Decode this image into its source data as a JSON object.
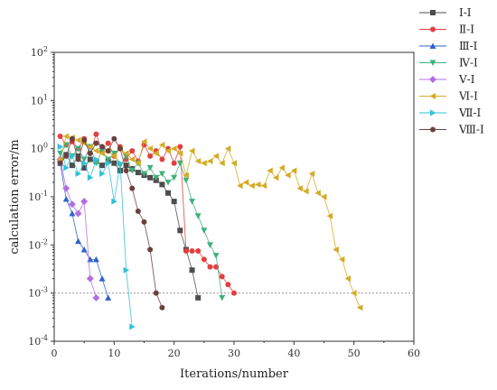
{
  "chart_data": {
    "type": "line",
    "xlabel": "Iterations/number",
    "ylabel": "calculation error/m",
    "xlim": [
      0,
      60
    ],
    "ylim": [
      0.0001,
      100
    ],
    "y_scale": "log",
    "x_ticks": [
      "0",
      "10",
      "20",
      "30",
      "40",
      "50",
      "60"
    ],
    "y_ticks": [
      {
        "value": 0.0001,
        "base": "10",
        "exp": "-4"
      },
      {
        "value": 0.001,
        "base": "10",
        "exp": "-3"
      },
      {
        "value": 0.01,
        "base": "10",
        "exp": "-2"
      },
      {
        "value": 0.1,
        "base": "10",
        "exp": "-1"
      },
      {
        "value": 1,
        "base": "10",
        "exp": "0"
      },
      {
        "value": 10,
        "base": "10",
        "exp": "1"
      },
      {
        "value": 100,
        "base": "10",
        "exp": "2"
      }
    ],
    "reference_line": {
      "y": 0.001,
      "style": "dashed"
    },
    "legend_position": "top-right, outside plot",
    "grid": false,
    "series": [
      {
        "name": "Ⅰ-Ⅰ",
        "color": "#4d4d4d",
        "marker": "square",
        "x": [
          1,
          2,
          3,
          4,
          5,
          6,
          7,
          8,
          9,
          10,
          11,
          12,
          13,
          14,
          15,
          16,
          17,
          18,
          19,
          20,
          21,
          22,
          23,
          24
        ],
        "y": [
          0.55,
          0.75,
          0.45,
          0.7,
          0.4,
          0.6,
          0.55,
          0.45,
          0.55,
          0.5,
          0.35,
          0.45,
          0.38,
          0.32,
          0.28,
          0.25,
          0.22,
          0.18,
          0.12,
          0.08,
          0.02,
          0.008,
          0.003,
          0.0008
        ]
      },
      {
        "name": "Ⅱ-Ⅰ",
        "color": "#e0403f",
        "marker": "circle",
        "x": [
          1,
          2,
          3,
          4,
          5,
          6,
          7,
          8,
          9,
          10,
          11,
          12,
          13,
          14,
          15,
          16,
          17,
          18,
          19,
          20,
          21,
          22,
          23,
          24,
          25,
          26,
          27,
          28,
          29,
          30
        ],
        "y": [
          1.8,
          1.2,
          1.4,
          1.0,
          1.6,
          0.8,
          2.0,
          0.9,
          1.3,
          0.7,
          1.1,
          0.6,
          0.9,
          0.55,
          1.2,
          0.7,
          0.9,
          0.6,
          1.0,
          0.5,
          1.1,
          0.0075,
          0.0075,
          0.0075,
          0.005,
          0.0035,
          0.0035,
          0.0022,
          0.0015,
          0.001
        ]
      },
      {
        "name": "Ⅲ-Ⅰ",
        "color": "#2f63c9",
        "marker": "triangle-up",
        "x": [
          1,
          2,
          3,
          4,
          5,
          6,
          7,
          8,
          9
        ],
        "y": [
          0.5,
          0.09,
          0.045,
          0.012,
          0.008,
          0.005,
          0.005,
          0.002,
          0.0008
        ]
      },
      {
        "name": "Ⅳ-Ⅰ",
        "color": "#3fb07c",
        "marker": "triangle-down",
        "x": [
          1,
          2,
          3,
          4,
          5,
          6,
          7,
          8,
          9,
          10,
          11,
          12,
          13,
          14,
          15,
          16,
          17,
          18,
          19,
          20,
          21,
          22,
          23,
          24,
          25,
          26,
          27,
          28
        ],
        "y": [
          0.8,
          1.2,
          0.7,
          1.0,
          0.6,
          1.1,
          0.5,
          0.9,
          0.6,
          0.8,
          0.45,
          0.7,
          0.35,
          0.5,
          0.3,
          0.4,
          0.25,
          0.3,
          0.2,
          0.25,
          0.5,
          0.22,
          0.08,
          0.04,
          0.02,
          0.01,
          0.006,
          0.0008
        ]
      },
      {
        "name": "Ⅴ-Ⅰ",
        "color": "#b36fe0",
        "marker": "diamond",
        "x": [
          1,
          2,
          3,
          4,
          5,
          6,
          7
        ],
        "y": [
          0.6,
          0.15,
          0.07,
          0.045,
          0.08,
          0.002,
          0.0008
        ]
      },
      {
        "name": "Ⅵ-Ⅰ",
        "color": "#d4ab25",
        "marker": "triangle-left",
        "x": [
          1,
          2,
          3,
          4,
          5,
          6,
          7,
          8,
          9,
          10,
          11,
          12,
          13,
          14,
          15,
          16,
          17,
          18,
          19,
          20,
          21,
          22,
          23,
          24,
          25,
          26,
          27,
          28,
          29,
          30,
          31,
          32,
          33,
          34,
          35,
          36,
          37,
          38,
          39,
          40,
          41,
          42,
          43,
          44,
          45,
          46,
          47,
          48,
          49,
          50,
          51
        ],
        "y": [
          0.6,
          1.8,
          1.7,
          1.5,
          1.3,
          1.1,
          0.9,
          0.8,
          0.9,
          0.7,
          1.0,
          0.8,
          0.6,
          0.5,
          1.4,
          1.0,
          0.8,
          1.2,
          0.9,
          1.0,
          0.8,
          0.28,
          0.9,
          0.55,
          0.5,
          0.55,
          0.7,
          0.5,
          1.0,
          0.5,
          0.17,
          0.2,
          0.17,
          0.18,
          0.17,
          0.35,
          0.25,
          0.4,
          0.28,
          0.35,
          0.15,
          0.13,
          0.3,
          0.12,
          0.1,
          0.04,
          0.008,
          0.005,
          0.002,
          0.001,
          0.0005
        ]
      },
      {
        "name": "Ⅶ-Ⅰ",
        "color": "#2fc2d6",
        "marker": "triangle-right",
        "x": [
          1,
          2,
          3,
          4,
          5,
          6,
          7,
          8,
          9,
          10,
          11,
          12,
          13
        ],
        "y": [
          1.1,
          0.4,
          0.7,
          0.3,
          0.5,
          0.25,
          0.6,
          0.3,
          0.5,
          0.08,
          0.5,
          0.003,
          0.0002
        ]
      },
      {
        "name": "Ⅷ-Ⅰ",
        "color": "#6b4040",
        "marker": "hexagon",
        "x": [
          1,
          2,
          3,
          4,
          5,
          6,
          7,
          8,
          9,
          10,
          11,
          12,
          13,
          14,
          15,
          16,
          17,
          18
        ],
        "y": [
          0.5,
          0.7,
          1.6,
          0.6,
          1.5,
          0.8,
          1.3,
          1.1,
          0.9,
          1.6,
          1.0,
          0.35,
          0.15,
          0.05,
          0.03,
          0.008,
          0.001,
          0.0005
        ]
      }
    ]
  }
}
